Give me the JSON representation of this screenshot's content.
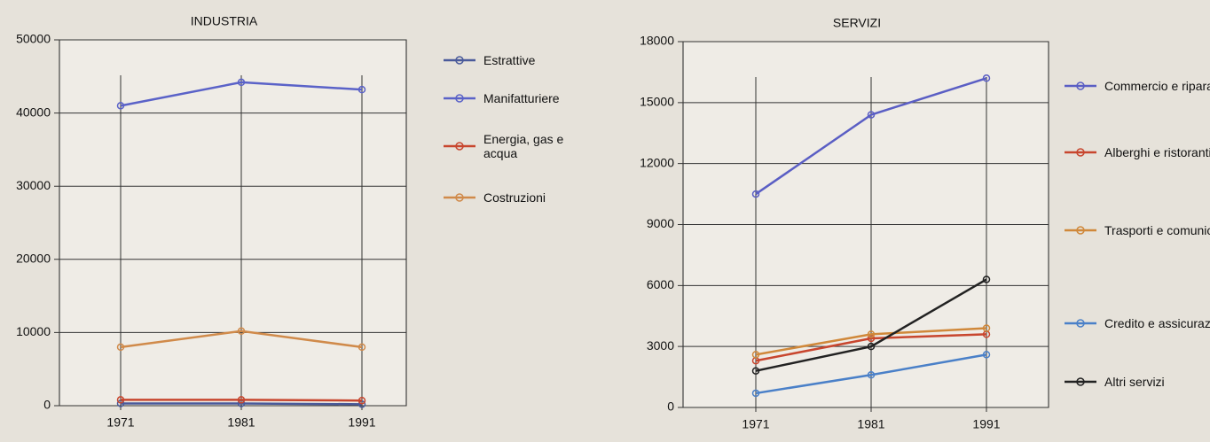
{
  "chart_data": [
    {
      "type": "line",
      "title": "INDUSTRIA",
      "categories": [
        "1971",
        "1981",
        "1991"
      ],
      "ylim": [
        0,
        50000
      ],
      "yticks": [
        0,
        10000,
        20000,
        30000,
        40000,
        50000
      ],
      "grid": true,
      "series": [
        {
          "name": "Estrattive",
          "color": "#4a5a9a",
          "values": [
            300,
            300,
            200
          ]
        },
        {
          "name": "Manifatturiere",
          "color": "#5a62c8",
          "values": [
            41000,
            44200,
            43200
          ]
        },
        {
          "name": "Energia, gas e acqua",
          "color": "#c8462e",
          "values": [
            800,
            800,
            700
          ]
        },
        {
          "name": "Costruzioni",
          "color": "#d08a4a",
          "values": [
            8000,
            10200,
            8000
          ]
        }
      ]
    },
    {
      "type": "line",
      "title": "SERVIZI",
      "categories": [
        "1971",
        "1981",
        "1991"
      ],
      "ylim": [
        0,
        18000
      ],
      "yticks": [
        0,
        3000,
        6000,
        9000,
        12000,
        15000,
        18000
      ],
      "grid": true,
      "series": [
        {
          "name": "Commercio e riparazioni",
          "color": "#5a5ec4",
          "values": [
            10500,
            14400,
            16200
          ]
        },
        {
          "name": "Alberghi e ristoranti",
          "color": "#c8462e",
          "values": [
            2300,
            3400,
            3600
          ]
        },
        {
          "name": "Trasporti e comunicazioni",
          "color": "#d0883a",
          "values": [
            2600,
            3600,
            3900
          ]
        },
        {
          "name": "Credito e assicurazioni",
          "color": "#4a80c8",
          "values": [
            700,
            1600,
            2600
          ]
        },
        {
          "name": "Altri servizi",
          "color": "#222222",
          "values": [
            1800,
            3000,
            6300
          ]
        }
      ]
    }
  ]
}
